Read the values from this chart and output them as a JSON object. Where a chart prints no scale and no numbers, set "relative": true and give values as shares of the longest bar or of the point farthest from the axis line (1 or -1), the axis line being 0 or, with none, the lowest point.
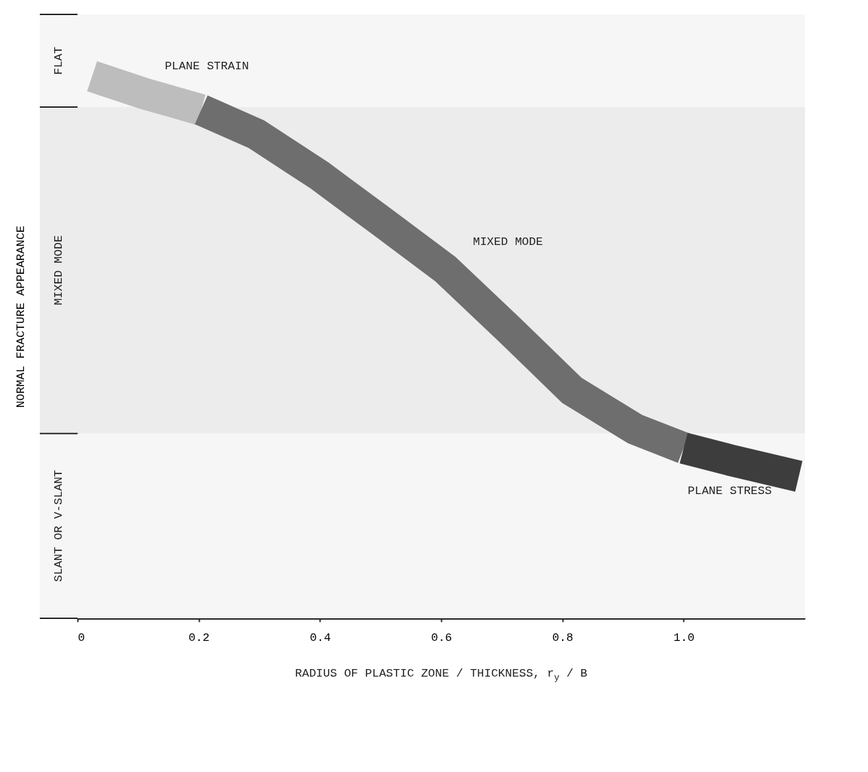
{
  "chart_data": {
    "type": "line",
    "relative": true,
    "xlabel": "RADIUS OF PLASTIC ZONE / THICKNESS, r$_{y}$ / B",
    "ylabel": "NORMAL FRACTURE APPEARANCE",
    "xlim": [
      0,
      1.2
    ],
    "xticks": [
      0,
      0.2,
      0.4,
      0.6,
      0.8,
      {
        "value": 1.0,
        "label": "1.0"
      }
    ],
    "grid": false,
    "series": [
      {
        "name": "PLANE STRAIN",
        "color": "#bdbdbd",
        "x": [
          0.024,
          0.11,
          0.204
        ],
        "values": [
          1.0,
          0.968,
          0.938
        ]
      },
      {
        "name": "MIXED MODE",
        "color": "#6e6e6e",
        "x": [
          0.204,
          0.295,
          0.399,
          0.503,
          0.607,
          0.711,
          0.816,
          0.92,
          1.0
        ],
        "values": [
          0.938,
          0.893,
          0.817,
          0.731,
          0.644,
          0.534,
          0.42,
          0.349,
          0.314
        ]
      },
      {
        "name": "PLANE STRESS",
        "color": "#3d3d3d",
        "x": [
          1.0,
          1.076,
          1.19
        ],
        "values": [
          0.314,
          0.292,
          0.262
        ]
      }
    ],
    "bands": [
      {
        "axis": "y",
        "from": 0.943,
        "to": 1.114,
        "label": "FLAT"
      },
      {
        "axis": "y",
        "from": 0.341,
        "to": 0.943,
        "label": "MIXED MODE"
      },
      {
        "axis": "y",
        "from": 0,
        "to": 0.341,
        "label": "SLANT OR V-SLANT"
      }
    ]
  }
}
